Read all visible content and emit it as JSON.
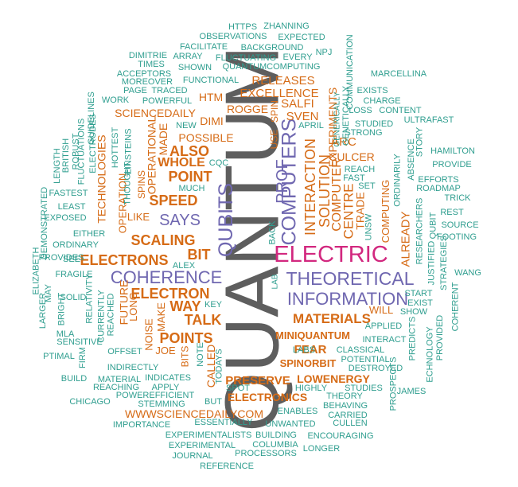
{
  "colors": {
    "teal": "#2f9e8f",
    "orange": "#d66b16",
    "purple": "#6f67b0",
    "magenta": "#d2287f",
    "gray": "#5e5e5e"
  },
  "words": [
    {
      "text": "QUANTUM",
      "color": "#5e5e5e"
    },
    {
      "text": "ELECTRIC",
      "color": "#d2287f"
    },
    {
      "text": "COMPUTERS",
      "color": "#6f67b0"
    },
    {
      "text": "QUBITS",
      "color": "#6f67b0"
    },
    {
      "text": "THEORETICAL",
      "color": "#6f67b0"
    },
    {
      "text": "INFORMATION",
      "color": "#6f67b0"
    },
    {
      "text": "COHERENCE",
      "color": "#6f67b0"
    },
    {
      "text": "SAYS",
      "color": "#6f67b0"
    },
    {
      "text": "PROF",
      "color": "#6f67b0"
    },
    {
      "text": "ELECTRONS",
      "color": "#d66b16"
    },
    {
      "text": "ELECTRON",
      "color": "#d66b16"
    },
    {
      "text": "SCALING",
      "color": "#d66b16"
    },
    {
      "text": "SPEED",
      "color": "#d66b16"
    },
    {
      "text": "POINT",
      "color": "#d66b16"
    },
    {
      "text": "WHOLE",
      "color": "#d66b16"
    },
    {
      "text": "ALSO",
      "color": "#d66b16"
    },
    {
      "text": "BIT",
      "color": "#d66b16"
    },
    {
      "text": "WAY",
      "color": "#d66b16"
    },
    {
      "text": "TALK",
      "color": "#d66b16"
    },
    {
      "text": "POINTS",
      "color": "#d66b16"
    },
    {
      "text": "MATERIALS",
      "color": "#d66b16"
    },
    {
      "text": "MINIQUANTUM",
      "color": "#d66b16"
    },
    {
      "text": "FEAR",
      "color": "#d66b16"
    },
    {
      "text": "SPINORBIT",
      "color": "#d66b16"
    },
    {
      "text": "LOWENERGY",
      "color": "#d66b16"
    },
    {
      "text": "PRESERVE",
      "color": "#d66b16"
    },
    {
      "text": "ELECTRONICS",
      "color": "#d66b16"
    },
    {
      "text": "WWWSCIENCEDAILYCOM",
      "color": "#d66b16"
    },
    {
      "text": "INTERACTION",
      "color": "#d66b16"
    },
    {
      "text": "SOLUTION",
      "color": "#d66b16"
    },
    {
      "text": "CENTRE",
      "color": "#d66b16"
    },
    {
      "text": "COMPUTER",
      "color": "#d66b16"
    },
    {
      "text": "TRADE",
      "color": "#d66b16"
    },
    {
      "text": "COMPUTING",
      "color": "#d66b16"
    },
    {
      "text": "ALREADY",
      "color": "#d66b16"
    },
    {
      "text": "RELEASES",
      "color": "#d66b16"
    },
    {
      "text": "EXCELLENCE",
      "color": "#d66b16"
    },
    {
      "text": "SALFI",
      "color": "#d66b16"
    },
    {
      "text": "SVEN",
      "color": "#d66b16"
    },
    {
      "text": "ARC",
      "color": "#d66b16"
    },
    {
      "text": "CULCER",
      "color": "#d66b16"
    },
    {
      "text": "EXPERIMENTS",
      "color": "#d66b16"
    },
    {
      "text": "ROGGE",
      "color": "#d66b16"
    },
    {
      "text": "HTM",
      "color": "#d66b16"
    },
    {
      "text": "DIMI",
      "color": "#d66b16"
    },
    {
      "text": "POSSIBLE",
      "color": "#d66b16"
    },
    {
      "text": "SCIENCEDAILY",
      "color": "#d66b16"
    },
    {
      "text": "OPERATIONAL",
      "color": "#d66b16"
    },
    {
      "text": "MADE",
      "color": "#d66b16"
    },
    {
      "text": "SPINS",
      "color": "#d66b16"
    },
    {
      "text": "TECHNOLOGIES",
      "color": "#d66b16"
    },
    {
      "text": "OPERATION",
      "color": "#d66b16"
    },
    {
      "text": "LIKE",
      "color": "#d66b16"
    },
    {
      "text": "FUTURE",
      "color": "#d66b16"
    },
    {
      "text": "LONG",
      "color": "#d66b16"
    },
    {
      "text": "NOISE",
      "color": "#d66b16"
    },
    {
      "text": "MAKE",
      "color": "#d66b16"
    },
    {
      "text": "JOE",
      "color": "#d66b16"
    },
    {
      "text": "BITS",
      "color": "#d66b16"
    },
    {
      "text": "CALLED",
      "color": "#d66b16"
    },
    {
      "text": "WILL",
      "color": "#d66b16"
    },
    {
      "text": "USE",
      "color": "#d66b16"
    },
    {
      "text": "SPIN",
      "color": "#d66b16"
    },
    {
      "text": "HTTPS",
      "color": "#2f9e8f"
    },
    {
      "text": "ZHANNING",
      "color": "#2f9e8f"
    },
    {
      "text": "OBSERVATIONS",
      "color": "#2f9e8f"
    },
    {
      "text": "EXPECTED",
      "color": "#2f9e8f"
    },
    {
      "text": "FACILITATE",
      "color": "#2f9e8f"
    },
    {
      "text": "BACKGROUND",
      "color": "#2f9e8f"
    },
    {
      "text": "DIMITRIE",
      "color": "#2f9e8f"
    },
    {
      "text": "ARRAY",
      "color": "#2f9e8f"
    },
    {
      "text": "FLUCTUATING",
      "color": "#2f9e8f"
    },
    {
      "text": "EVERY",
      "color": "#2f9e8f"
    },
    {
      "text": "NPJ",
      "color": "#2f9e8f"
    },
    {
      "text": "TIMES",
      "color": "#2f9e8f"
    },
    {
      "text": "SHOWN",
      "color": "#2f9e8f"
    },
    {
      "text": "QUANTUMCOMPUTING",
      "color": "#2f9e8f"
    },
    {
      "text": "COMMUNICATION",
      "color": "#2f9e8f"
    },
    {
      "text": "ACCEPTORS",
      "color": "#2f9e8f"
    },
    {
      "text": "MOREOVER",
      "color": "#2f9e8f"
    },
    {
      "text": "FUNCTIONAL",
      "color": "#2f9e8f"
    },
    {
      "text": "MARCELLINA",
      "color": "#2f9e8f"
    },
    {
      "text": "PAGE",
      "color": "#2f9e8f"
    },
    {
      "text": "TRACED",
      "color": "#2f9e8f"
    },
    {
      "text": "EXISTS",
      "color": "#2f9e8f"
    },
    {
      "text": "WORK",
      "color": "#2f9e8f"
    },
    {
      "text": "POWERFUL",
      "color": "#2f9e8f"
    },
    {
      "text": "CHARGE",
      "color": "#2f9e8f"
    },
    {
      "text": "LOSS",
      "color": "#2f9e8f"
    },
    {
      "text": "CONTENT",
      "color": "#2f9e8f"
    },
    {
      "text": "GENETICALLY",
      "color": "#2f9e8f"
    },
    {
      "text": "ULTRAFAST",
      "color": "#2f9e8f"
    },
    {
      "text": "APRIL",
      "color": "#2f9e8f"
    },
    {
      "text": "STUDIED",
      "color": "#2f9e8f"
    },
    {
      "text": "NEW",
      "color": "#2f9e8f"
    },
    {
      "text": "STRONG",
      "color": "#2f9e8f"
    },
    {
      "text": "GENERICALLY",
      "color": "#2f9e8f"
    },
    {
      "text": "STORY",
      "color": "#2f9e8f"
    },
    {
      "text": "HAMILTON",
      "color": "#2f9e8f"
    },
    {
      "text": "PROVIDE",
      "color": "#2f9e8f"
    },
    {
      "text": "ABSENCE",
      "color": "#2f9e8f"
    },
    {
      "text": "EINSTEINS",
      "color": "#2f9e8f"
    },
    {
      "text": "HOTTEST",
      "color": "#2f9e8f"
    },
    {
      "text": "REACH",
      "color": "#2f9e8f"
    },
    {
      "text": "FAST",
      "color": "#2f9e8f"
    },
    {
      "text": "EFFORTS",
      "color": "#2f9e8f"
    },
    {
      "text": "ROADMAP",
      "color": "#2f9e8f"
    },
    {
      "text": "SET",
      "color": "#2f9e8f"
    },
    {
      "text": "ORDINARILY",
      "color": "#2f9e8f"
    },
    {
      "text": "CQC",
      "color": "#2f9e8f"
    },
    {
      "text": "THOUGHT",
      "color": "#2f9e8f"
    },
    {
      "text": "MUCH",
      "color": "#2f9e8f"
    },
    {
      "text": "TRICK",
      "color": "#2f9e8f"
    },
    {
      "text": "FASTEST",
      "color": "#2f9e8f"
    },
    {
      "text": "LEAST",
      "color": "#2f9e8f"
    },
    {
      "text": "REST",
      "color": "#2f9e8f"
    },
    {
      "text": "SOURCE",
      "color": "#2f9e8f"
    },
    {
      "text": "QUBIT",
      "color": "#2f9e8f"
    },
    {
      "text": "FOOTING",
      "color": "#2f9e8f"
    },
    {
      "text": "EXPOSED",
      "color": "#2f9e8f"
    },
    {
      "text": "EITHER",
      "color": "#2f9e8f"
    },
    {
      "text": "ORDINARY",
      "color": "#2f9e8f"
    },
    {
      "text": "UNSW",
      "color": "#2f9e8f"
    },
    {
      "text": "RESEARCHERS",
      "color": "#2f9e8f"
    },
    {
      "text": "JUSTIFIED",
      "color": "#2f9e8f"
    },
    {
      "text": "STRATEGIES",
      "color": "#2f9e8f"
    },
    {
      "text": "WANG",
      "color": "#2f9e8f"
    },
    {
      "text": "BACK",
      "color": "#2f9e8f"
    },
    {
      "text": "ALEX",
      "color": "#2f9e8f"
    },
    {
      "text": "FRAGILE",
      "color": "#2f9e8f"
    },
    {
      "text": "LAB",
      "color": "#2f9e8f"
    },
    {
      "text": "START",
      "color": "#2f9e8f"
    },
    {
      "text": "EXIST",
      "color": "#2f9e8f"
    },
    {
      "text": "SHOW",
      "color": "#2f9e8f"
    },
    {
      "text": "COHERENT",
      "color": "#2f9e8f"
    },
    {
      "text": "PROVIDES",
      "color": "#2f9e8f"
    },
    {
      "text": "SEE",
      "color": "#2f9e8f"
    },
    {
      "text": "MAY",
      "color": "#2f9e8f"
    },
    {
      "text": "SOLID",
      "color": "#2f9e8f"
    },
    {
      "text": "RELATIVITY",
      "color": "#2f9e8f"
    },
    {
      "text": "REACHED",
      "color": "#2f9e8f"
    },
    {
      "text": "ELIZABETH",
      "color": "#2f9e8f"
    },
    {
      "text": "DEMONSTRATED",
      "color": "#2f9e8f"
    },
    {
      "text": "LENGTH",
      "color": "#2f9e8f"
    },
    {
      "text": "BRITISH",
      "color": "#2f9e8f"
    },
    {
      "text": "ROBUST",
      "color": "#2f9e8f"
    },
    {
      "text": "FLUCTUATIONS",
      "color": "#2f9e8f"
    },
    {
      "text": "ELECTRODES",
      "color": "#2f9e8f"
    },
    {
      "text": "GUIDELINES",
      "color": "#2f9e8f"
    },
    {
      "text": "LARGER",
      "color": "#2f9e8f"
    },
    {
      "text": "BRIGHT",
      "color": "#2f9e8f"
    },
    {
      "text": "MLA",
      "color": "#2f9e8f"
    },
    {
      "text": "SENSITIVE",
      "color": "#2f9e8f"
    },
    {
      "text": "FIRM",
      "color": "#2f9e8f"
    },
    {
      "text": "CURRENTLY",
      "color": "#2f9e8f"
    },
    {
      "text": "PTIMAL",
      "color": "#2f9e8f"
    },
    {
      "text": "OFFSET",
      "color": "#2f9e8f"
    },
    {
      "text": "KEY",
      "color": "#2f9e8f"
    },
    {
      "text": "INDIRECTLY",
      "color": "#2f9e8f"
    },
    {
      "text": "NOTE",
      "color": "#2f9e8f"
    },
    {
      "text": "TODAYS",
      "color": "#2f9e8f"
    },
    {
      "text": "BUILD",
      "color": "#2f9e8f"
    },
    {
      "text": "MATERIAL",
      "color": "#2f9e8f"
    },
    {
      "text": "INDICATES",
      "color": "#2f9e8f"
    },
    {
      "text": "REACHING",
      "color": "#2f9e8f"
    },
    {
      "text": "APPLY",
      "color": "#2f9e8f"
    },
    {
      "text": "CHICAGO",
      "color": "#2f9e8f"
    },
    {
      "text": "POWEREFFICIENT",
      "color": "#2f9e8f"
    },
    {
      "text": "STEMMING",
      "color": "#2f9e8f"
    },
    {
      "text": "SPOT",
      "color": "#2f9e8f"
    },
    {
      "text": "BUT",
      "color": "#2f9e8f"
    },
    {
      "text": "ESSENTIALLY",
      "color": "#2f9e8f"
    },
    {
      "text": "IMPORTANCE",
      "color": "#2f9e8f"
    },
    {
      "text": "EXPERIMENTALISTS",
      "color": "#2f9e8f"
    },
    {
      "text": "EXPERIMENTAL",
      "color": "#2f9e8f"
    },
    {
      "text": "JOURNAL",
      "color": "#2f9e8f"
    },
    {
      "text": "REFERENCE",
      "color": "#2f9e8f"
    },
    {
      "text": "BUILDING",
      "color": "#2f9e8f"
    },
    {
      "text": "COLUMBIA",
      "color": "#2f9e8f"
    },
    {
      "text": "PROCESSORS",
      "color": "#2f9e8f"
    },
    {
      "text": "ENCOURAGING",
      "color": "#2f9e8f"
    },
    {
      "text": "LONGER",
      "color": "#2f9e8f"
    },
    {
      "text": "UNWANTED",
      "color": "#2f9e8f"
    },
    {
      "text": "CULLEN",
      "color": "#2f9e8f"
    },
    {
      "text": "CARRIED",
      "color": "#2f9e8f"
    },
    {
      "text": "ENABLES",
      "color": "#2f9e8f"
    },
    {
      "text": "BEHAVING",
      "color": "#2f9e8f"
    },
    {
      "text": "THEORY",
      "color": "#2f9e8f"
    },
    {
      "text": "HIGHLY",
      "color": "#2f9e8f"
    },
    {
      "text": "STUDIES",
      "color": "#2f9e8f"
    },
    {
      "text": "JAMES",
      "color": "#2f9e8f"
    },
    {
      "text": "PROSPECTS",
      "color": "#2f9e8f"
    },
    {
      "text": "DESTROYED",
      "color": "#2f9e8f"
    },
    {
      "text": "POTENTIAL",
      "color": "#2f9e8f"
    },
    {
      "text": "CLASSICAL",
      "color": "#2f9e8f"
    },
    {
      "text": "LABS",
      "color": "#2f9e8f"
    },
    {
      "text": "INTERACT",
      "color": "#2f9e8f"
    },
    {
      "text": "APPLIED",
      "color": "#2f9e8f"
    },
    {
      "text": "PREDICTS",
      "color": "#2f9e8f"
    },
    {
      "text": "ECHNOLOGY",
      "color": "#2f9e8f"
    },
    {
      "text": "PROVIDED",
      "color": "#2f9e8f"
    }
  ]
}
